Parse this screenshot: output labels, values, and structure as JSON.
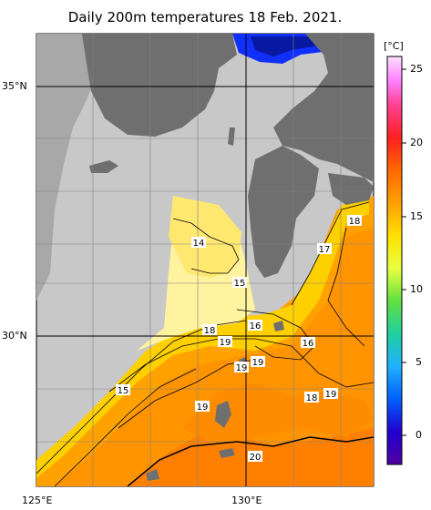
{
  "title": "Daily 200m temperatures 18 Feb. 2021.",
  "axes": {
    "lat_labels": [
      {
        "text": "35°N"
      },
      {
        "text": "30°N"
      }
    ],
    "lon_labels": [
      {
        "text": "125°E"
      },
      {
        "text": "130°E"
      }
    ]
  },
  "colorbar": {
    "unit": "[°C]",
    "ticks": [
      "25",
      "20",
      "15",
      "10",
      "5",
      "0"
    ],
    "colors": [
      "#ff88ff",
      "#ff4080",
      "#ff2020",
      "#ff6a00",
      "#ffa000",
      "#ffd000",
      "#ffff20",
      "#c8f040",
      "#40d040",
      "#20d0a0",
      "#20a0ff",
      "#0040ff",
      "#2000c0",
      "#5000a0"
    ]
  },
  "contour_labels": [
    "18",
    "17",
    "14",
    "15",
    "16",
    "18",
    "19",
    "16",
    "19",
    "19",
    "15",
    "18",
    "19",
    "19",
    "20"
  ]
}
